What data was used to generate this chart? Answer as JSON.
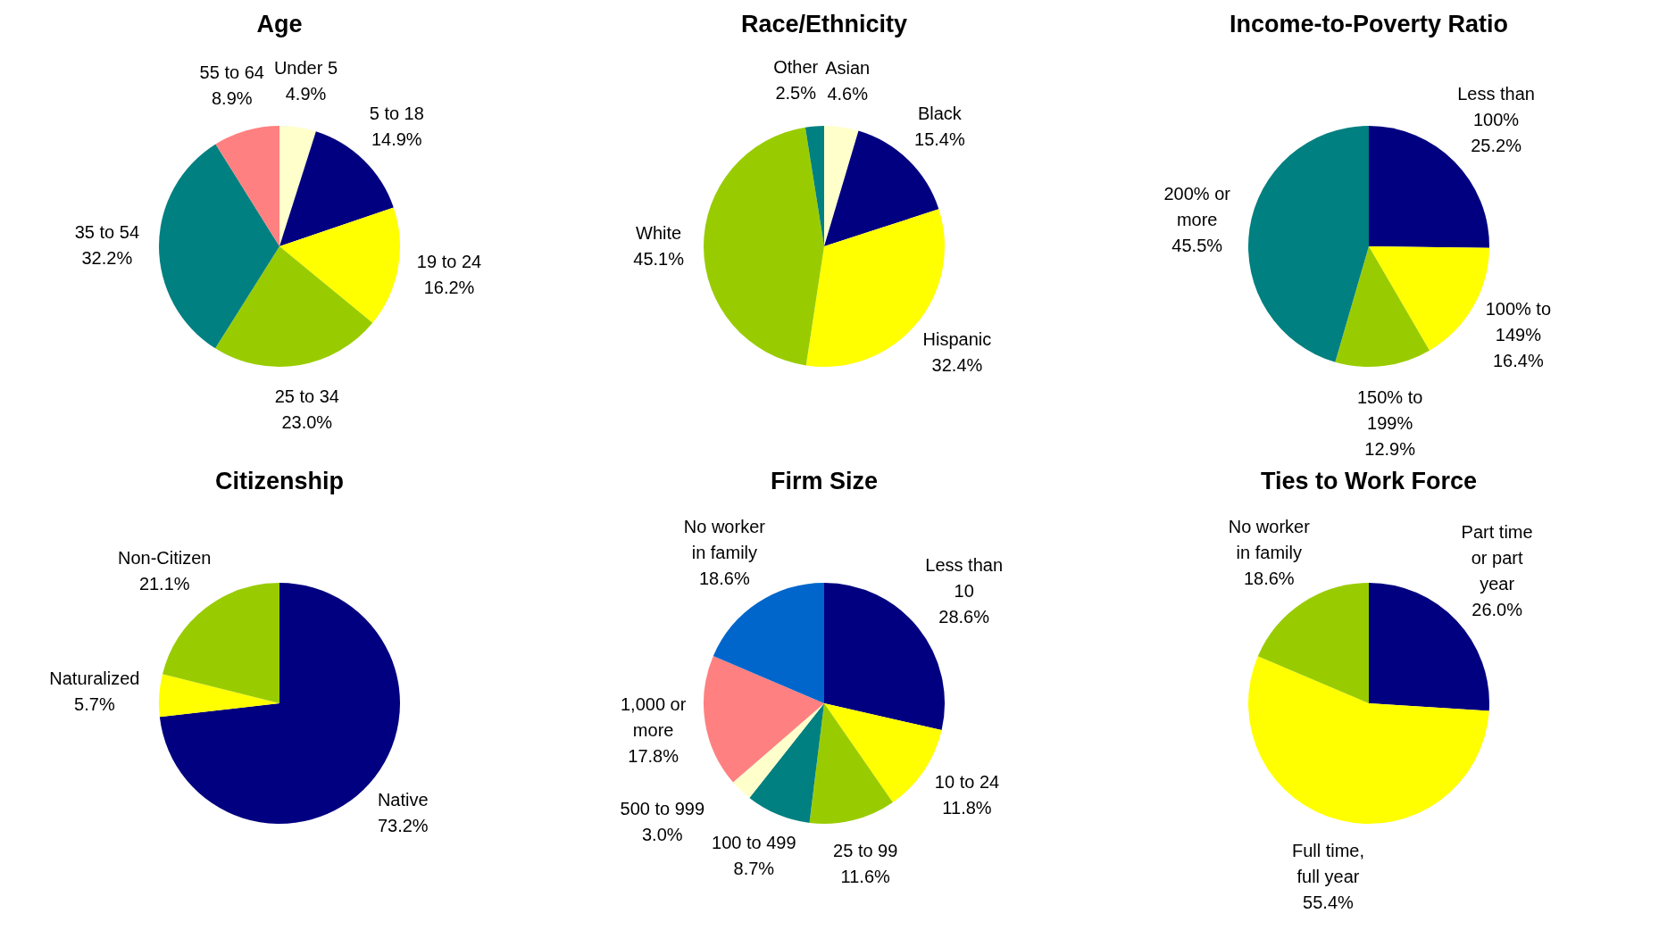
{
  "chart_data": [
    {
      "type": "pie",
      "title": "Age",
      "categories": [
        "Under 5",
        "5 to 18",
        "19 to 24",
        "25 to 34",
        "35 to 54",
        "55 to 64"
      ],
      "values": [
        4.9,
        14.9,
        16.2,
        23.0,
        32.2,
        8.9
      ],
      "value_labels": [
        "4.9%",
        "14.9%",
        "16.2%",
        "23.0%",
        "32.2%",
        "8.9%"
      ],
      "colors": [
        "#ffffcc",
        "#000080",
        "#ffff00",
        "#99cc00",
        "#008080",
        "#ff8080"
      ]
    },
    {
      "type": "pie",
      "title": "Race/Ethnicity",
      "categories": [
        "Asian",
        "Black",
        "Hispanic",
        "White",
        "Other"
      ],
      "values": [
        4.6,
        15.4,
        32.4,
        45.1,
        2.5
      ],
      "value_labels": [
        "4.6%",
        "15.4%",
        "32.4%",
        "45.1%",
        "2.5%"
      ],
      "colors": [
        "#ffffcc",
        "#000080",
        "#ffff00",
        "#99cc00",
        "#008080"
      ]
    },
    {
      "type": "pie",
      "title": "Income-to-Poverty Ratio",
      "categories": [
        "Less than 100%",
        "100% to 149%",
        "150% to 199%",
        "200% or more"
      ],
      "values": [
        25.2,
        16.4,
        12.9,
        45.5
      ],
      "value_labels": [
        "25.2%",
        "16.4%",
        "12.9%",
        "45.5%"
      ],
      "colors": [
        "#000080",
        "#ffff00",
        "#99cc00",
        "#008080"
      ]
    },
    {
      "type": "pie",
      "title": "Citizenship",
      "categories": [
        "Native",
        "Naturalized",
        "Non-Citizen"
      ],
      "values": [
        73.2,
        5.7,
        21.1
      ],
      "value_labels": [
        "73.2%",
        "5.7%",
        "21.1%"
      ],
      "colors": [
        "#000080",
        "#ffff00",
        "#99cc00"
      ]
    },
    {
      "type": "pie",
      "title": "Firm Size",
      "categories": [
        "Less than 10",
        "10 to 24",
        "25 to 99",
        "100 to 499",
        "500 to 999",
        "1,000 or more",
        "No worker in family"
      ],
      "values": [
        28.6,
        11.8,
        11.6,
        8.7,
        3.0,
        17.8,
        18.6
      ],
      "value_labels": [
        "28.6%",
        "11.8%",
        "11.6%",
        "8.7%",
        "3.0%",
        "17.8%",
        "18.6%"
      ],
      "colors": [
        "#000080",
        "#ffff00",
        "#99cc00",
        "#008080",
        "#ffffcc",
        "#ff8080",
        "#0066cc"
      ]
    },
    {
      "type": "pie",
      "title": "Ties to Work Force",
      "categories": [
        "Part time or part year",
        "Full time, full year",
        "No worker in family"
      ],
      "values": [
        26.0,
        55.4,
        18.6
      ],
      "value_labels": [
        "26.0%",
        "55.4%",
        "18.6%"
      ],
      "colors": [
        "#000080",
        "#ffff00",
        "#99cc00"
      ]
    }
  ]
}
